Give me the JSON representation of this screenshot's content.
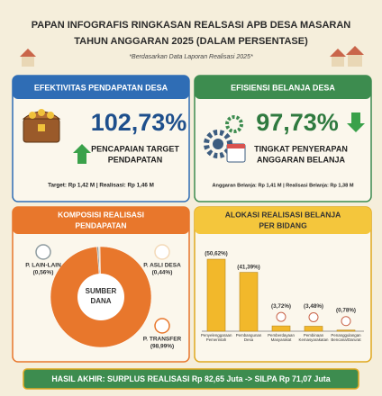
{
  "header": {
    "title": [
      "PAPAN INFOGRAFIS RINGKASAN REALSASI APB DESA MASARAN",
      "TAHUN ANGGARAN 2025 (DALAM PERSENTASE)"
    ],
    "subtitle": "*Berdasarkan Data Laporan Realisasi 2025*"
  },
  "cards": [
    {
      "title": "EFEKTIVITAS PENDAPATAN DESA",
      "value": "102,73%",
      "caption": [
        "PENCAPAIAN TARGET",
        "PENDAPATAN"
      ],
      "detail": "Target: Rp 1,42 M | Realisasi: Rp 1,46 M"
    },
    {
      "title": "EFISIENSI BELANJA DESA",
      "value": "97,73%",
      "caption": [
        "TINGKAT PENYERAPAN",
        "ANGGARAN BELANJA"
      ],
      "detail": "Anggaran Belanja: Rp 1,41 M | Realisasi Belanja: Rp 1,38 M"
    }
  ],
  "chart_data": [
    {
      "type": "pie",
      "title": [
        "KOMPOSISI REALISASI",
        "PENDAPATAN"
      ],
      "center_label": [
        "SUMBER",
        "DANA"
      ],
      "categories": [
        "P. LAIN-LAIN",
        "P. ASLI DESA",
        "P. TRANSFER"
      ],
      "values": [
        0.56,
        0.44,
        98.99
      ],
      "value_labels": [
        "(0,56%)",
        "(0,44%)",
        "(98,99%)"
      ],
      "colors": [
        "#8f9ca0",
        "#f3d9b8",
        "#e8772c"
      ]
    },
    {
      "type": "bar",
      "title": [
        "ALOKASI REALISASI BELANJA",
        "PER BIDANG"
      ],
      "categories": [
        "Penyelenggaraan Pemerintah",
        "Pembangunan Desa",
        "Pemberdayaan Masyarakat",
        "Pembinaan Kemasyarakatan",
        "Penanggulangan Bencana/Darurat"
      ],
      "values": [
        50.62,
        41.39,
        3.72,
        3.48,
        0.78
      ],
      "value_labels": [
        "(50,62%)",
        "(41,39%)",
        "(3,72%)",
        "(3,48%)",
        "(0,78%)"
      ],
      "color": "#f2b82b"
    }
  ],
  "footer": "HASIL AKHIR: SURPLUS REALISASI Rp 82,65 Juta -> SILPA Rp 71,07 Juta"
}
